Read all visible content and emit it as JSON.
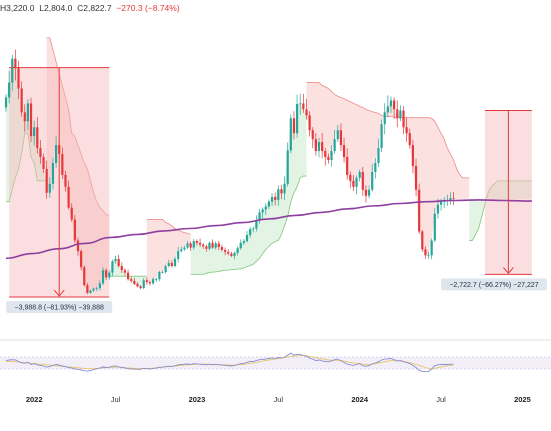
{
  "header": {
    "high_label": "H",
    "high": "3,220.0",
    "low_label": "L",
    "low": "2,804.0",
    "close_label": "C",
    "close": "2,822.7",
    "change": "−270.3 (−8.74%)"
  },
  "colors": {
    "up": "#26a69a",
    "down": "#e5383b",
    "ma": "#8e3fa0",
    "stop_up_fill": "#dff2df",
    "stop_down_fill": "#fbdcdc",
    "measure_fill": "#f6b9ba",
    "measure_line": "#e5383b",
    "label_bg": "#dfe6ee",
    "rsi_line": "#8a8fcf",
    "rsi_signal": "#e9c46a",
    "rsi_band": "#ece8f6"
  },
  "chart_data": {
    "type": "candlestick",
    "xlabel": "",
    "ylabel": "",
    "x_ticks": [
      {
        "label": "2022",
        "major": true
      },
      {
        "label": "Jul",
        "major": false
      },
      {
        "label": "2023",
        "major": true
      },
      {
        "label": "Jul",
        "major": false
      },
      {
        "label": "2024",
        "major": true
      },
      {
        "label": "Jul",
        "major": false
      },
      {
        "label": "2025",
        "major": true
      }
    ],
    "x_tick_weeks": [
      9,
      35,
      61,
      87,
      113,
      139,
      165
    ],
    "ylim": [
      8000,
      55000
    ],
    "closes": [
      42000,
      44500,
      48500,
      47000,
      43500,
      39500,
      38000,
      41000,
      35500,
      37000,
      33500,
      32000,
      30000,
      26000,
      27500,
      31000,
      34000,
      32500,
      29000,
      27000,
      23500,
      21500,
      18000,
      16200,
      13500,
      10500,
      9200,
      9600,
      9900,
      10000,
      10800,
      13000,
      11800,
      12600,
      14500,
      14900,
      13700,
      13000,
      12600,
      11500,
      11200,
      10700,
      10300,
      10000,
      11300,
      11000,
      10800,
      11500,
      11500,
      12700,
      12700,
      13700,
      14200,
      13700,
      14900,
      16200,
      16500,
      16800,
      17500,
      16800,
      17900,
      17600,
      17300,
      17000,
      16600,
      17600,
      16800,
      17500,
      16900,
      16400,
      16100,
      15800,
      15400,
      15900,
      16700,
      17600,
      17900,
      18900,
      19900,
      20000,
      21400,
      22700,
      23200,
      23700,
      24500,
      25300,
      24800,
      26600,
      25900,
      27500,
      33100,
      38500,
      36000,
      40900,
      41000,
      40000,
      39000,
      36500,
      35000,
      33000,
      34500,
      33000,
      32000,
      31500,
      33000,
      35000,
      36500,
      34000,
      32000,
      29000,
      28000,
      27000,
      28500,
      29500,
      26500,
      25500,
      26500,
      29500,
      31000,
      33500,
      37500,
      39500,
      40500,
      41500,
      40000,
      38500,
      39800,
      37000,
      36000,
      34000,
      30500,
      26500,
      19500,
      16500,
      15500,
      15500,
      18000,
      22500,
      24000,
      24500,
      24600,
      24700,
      25100,
      25000
    ],
    "moving_average": {
      "start_week": 0,
      "values": [
        15000,
        15800,
        16600,
        17500,
        18500,
        19000,
        19600,
        20000,
        20500,
        21000,
        21600,
        22200,
        22700,
        23300,
        23800,
        24200,
        24500,
        24700,
        24800,
        24700,
        24600
      ]
    },
    "trailing_stop": {
      "series": [
        {
          "trend": "up",
          "weeks": [
            0,
            13
          ],
          "levels": [
            24500,
            24500,
            26500,
            28500,
            30000,
            32500,
            36000,
            36000,
            32000,
            31000,
            28000,
            28000,
            28000,
            28000
          ]
        },
        {
          "trend": "down",
          "weeks": [
            13,
            33
          ],
          "levels": [
            52000,
            52000,
            50000,
            48000,
            46000,
            44000,
            42000,
            40000,
            36000,
            35500,
            34000,
            32500,
            31000,
            30000,
            28000,
            26000,
            24500,
            23500,
            23000,
            22300,
            22200
          ]
        },
        {
          "trend": "up",
          "weeks": [
            33,
            45
          ],
          "levels": [
            12000,
            12000,
            12000,
            12000,
            12000,
            12000,
            12000,
            12000,
            12000,
            12000,
            12000,
            12000,
            12000
          ]
        },
        {
          "trend": "down",
          "weeks": [
            45,
            59
          ],
          "levels": [
            21500,
            21500,
            21500,
            21500,
            21500,
            21500,
            21000,
            20800,
            20400,
            20000,
            19700,
            19500,
            19300,
            19200,
            19000
          ]
        },
        {
          "trend": "up",
          "weeks": [
            59,
            96
          ],
          "levels": [
            12300,
            12300,
            12300,
            12300,
            12300,
            12500,
            12600,
            12700,
            12700,
            12800,
            12900,
            13000,
            13000,
            13100,
            13100,
            13200,
            13200,
            13400,
            13600,
            13800,
            14000,
            14500,
            15000,
            15800,
            16500,
            17000,
            17500,
            17800,
            18000,
            19000,
            20500,
            22000,
            24500,
            26000,
            27000,
            28500,
            28800,
            28800
          ]
        },
        {
          "trend": "down",
          "weeks": [
            96,
            148
          ],
          "levels": [
            44500,
            44500,
            44500,
            44500,
            44500,
            44000,
            43800,
            43500,
            43000,
            42500,
            42200,
            42000,
            41800,
            41500,
            41300,
            41000,
            40800,
            40500,
            40300,
            40000,
            39800,
            39600,
            39500,
            39300,
            39000,
            38800,
            38800,
            38800,
            38700,
            38600,
            38600,
            38600,
            38600,
            38600,
            38600,
            38600,
            38600,
            38600,
            38600,
            38600,
            38500,
            38000,
            37000,
            36000,
            35000,
            33500,
            32500,
            31500,
            30000,
            29000,
            28500,
            28500,
            28500
          ]
        },
        {
          "trend": "up",
          "weeks": [
            148,
            168
          ],
          "levels": [
            18000,
            18000,
            19000,
            20000,
            22000,
            24000,
            26000,
            27000,
            27500,
            28000,
            28000,
            28000,
            28000,
            28000,
            28000,
            28000,
            28000,
            28000,
            28000,
            28000,
            28000
          ]
        }
      ]
    },
    "rsi": {
      "values": [
        58,
        60,
        61,
        60,
        55,
        51,
        49,
        53,
        45,
        48,
        44,
        42,
        40,
        36,
        38,
        42,
        45,
        43,
        40,
        38,
        35,
        33,
        30,
        29,
        27,
        24,
        23,
        25,
        28,
        31,
        33,
        37,
        35,
        36,
        39,
        40,
        37,
        35,
        34,
        31,
        30,
        30,
        29,
        29,
        32,
        31,
        30,
        32,
        33,
        36,
        36,
        38,
        39,
        38,
        41,
        44,
        45,
        46,
        47,
        45,
        48,
        47,
        46,
        45,
        44,
        46,
        44,
        46,
        44,
        43,
        42,
        41,
        40,
        42,
        45,
        48,
        49,
        52,
        55,
        55,
        58,
        61,
        62,
        63,
        65,
        67,
        64,
        69,
        66,
        70,
        76,
        83,
        76,
        79,
        78,
        75,
        72,
        66,
        63,
        58,
        60,
        57,
        55,
        54,
        57,
        61,
        63,
        57,
        52,
        46,
        44,
        42,
        45,
        48,
        41,
        39,
        41,
        47,
        50,
        54,
        60,
        63,
        64,
        65,
        61,
        57,
        59,
        54,
        52,
        48,
        42,
        35,
        26,
        22,
        21,
        22,
        30,
        41,
        44,
        45,
        45,
        45,
        46,
        46
      ],
      "signal": [
        55,
        55,
        55,
        54,
        53,
        52,
        51,
        50,
        49,
        48,
        47,
        46,
        45,
        44,
        43,
        42,
        41,
        40,
        39,
        38,
        37,
        36,
        35,
        34,
        33,
        32,
        31,
        31,
        31,
        32,
        33,
        34,
        35,
        35,
        36,
        36,
        36,
        35,
        34,
        33,
        33,
        32,
        32,
        32,
        32,
        32,
        32,
        33,
        34,
        35,
        36,
        37,
        38,
        39,
        40,
        41,
        42,
        43,
        44,
        45,
        45,
        46,
        46,
        46,
        46,
        46,
        45,
        45,
        45,
        44,
        44,
        43,
        43,
        43,
        44,
        45,
        46,
        47,
        49,
        50,
        52,
        54,
        56,
        58,
        60,
        62,
        63,
        65,
        66,
        68,
        70,
        72,
        73,
        74,
        75,
        75,
        74,
        72,
        70,
        68,
        66,
        64,
        62,
        60,
        59,
        59,
        59,
        58,
        56,
        54,
        52,
        50,
        49,
        48,
        46,
        45,
        45,
        46,
        48,
        50,
        52,
        54,
        56,
        58,
        58,
        57,
        56,
        55,
        53,
        51,
        48,
        45,
        42,
        38,
        35,
        32,
        31,
        32,
        35,
        37,
        39,
        41,
        42,
        43
      ]
    },
    "measure_ranges": [
      {
        "name": "range-2022",
        "start_week": 1,
        "end_week": 33,
        "from": 47000,
        "to": 8500,
        "label": "−3,988.8 (−81.93%) −39,888"
      },
      {
        "name": "range-2025",
        "start_week": 153,
        "end_week": 168,
        "from": 39800,
        "to": 12300,
        "label": "−2,722.7 (−66.27%) −27,227"
      }
    ]
  }
}
